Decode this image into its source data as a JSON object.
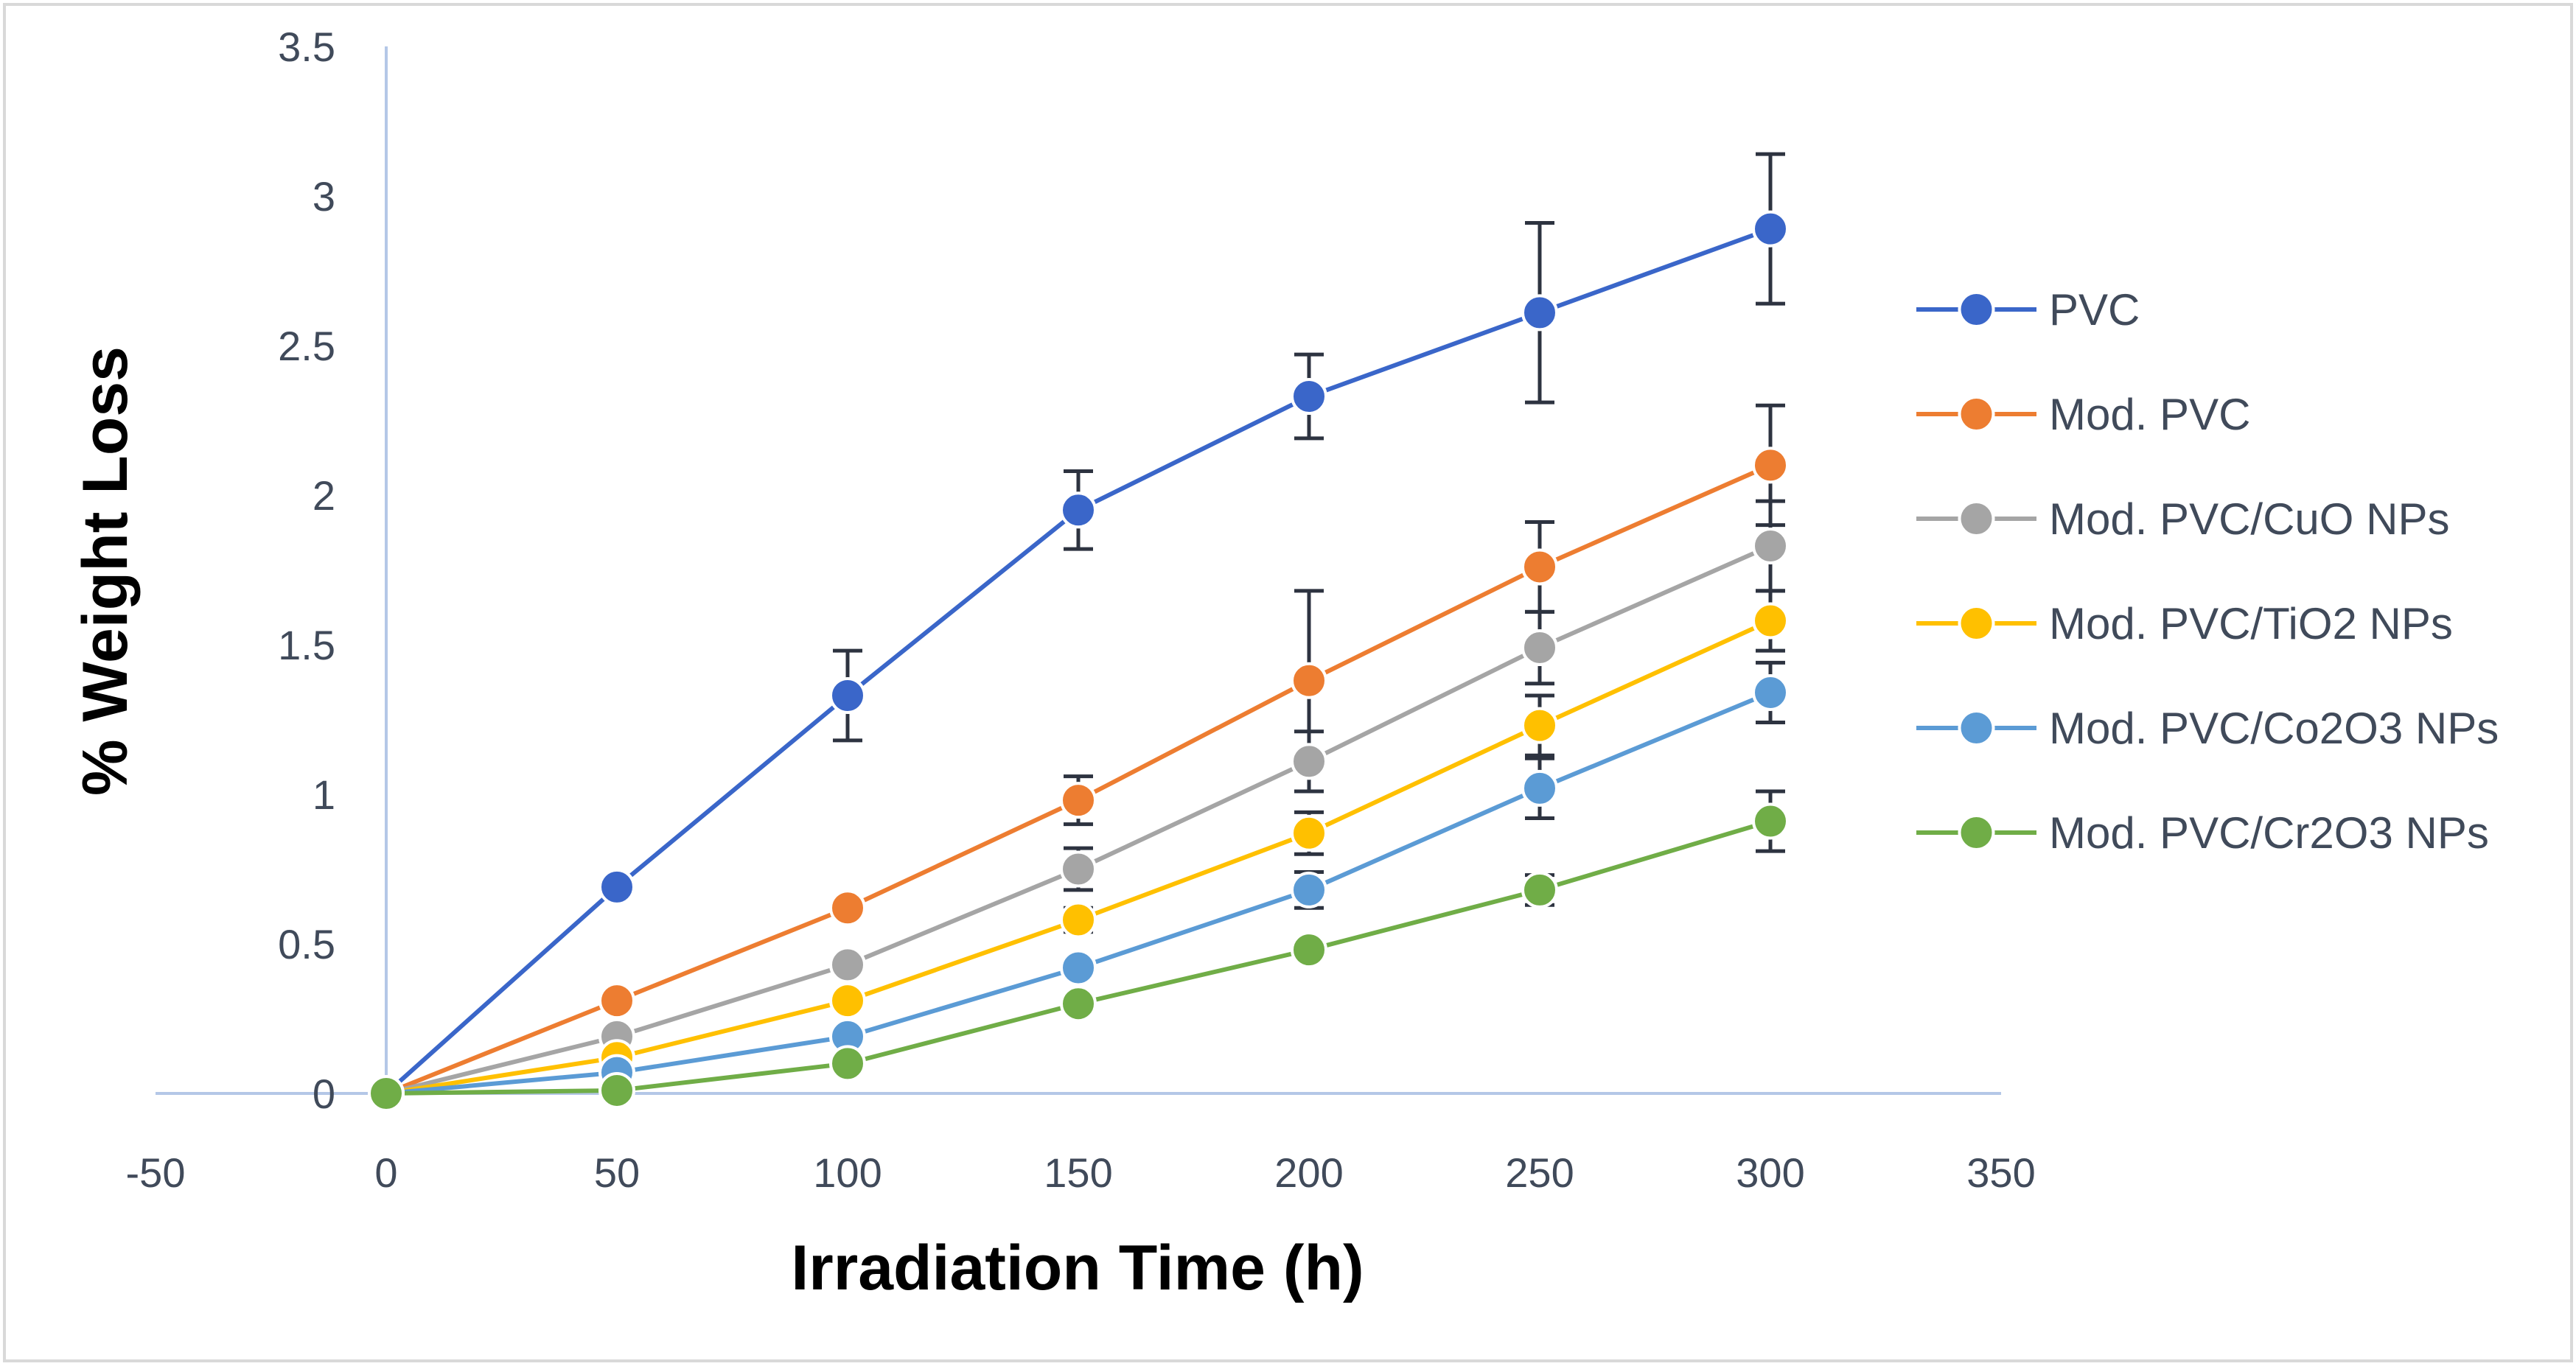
{
  "chart_data": {
    "type": "line",
    "title": "",
    "xlabel": "Irradiation Time (h)",
    "ylabel": "% Weight Loss",
    "xlim": [
      -50,
      350
    ],
    "ylim": [
      0,
      3.5
    ],
    "xticks": [
      -50,
      0,
      50,
      100,
      150,
      200,
      250,
      300,
      350
    ],
    "yticks": [
      0,
      0.5,
      1,
      1.5,
      2,
      2.5,
      3,
      3.5
    ],
    "x": [
      0,
      50,
      100,
      150,
      200,
      250,
      300
    ],
    "grid": false,
    "legend_position": "right",
    "series": [
      {
        "name": "PVC",
        "color": "#3a66c9",
        "values": [
          0,
          0.69,
          1.33,
          1.95,
          2.33,
          2.61,
          2.89
        ],
        "errors": [
          0,
          0.02,
          0.15,
          0.13,
          0.14,
          0.3,
          0.25
        ]
      },
      {
        "name": "Mod. PVC",
        "color": "#ed7d31",
        "values": [
          0,
          0.31,
          0.62,
          0.98,
          1.38,
          1.76,
          2.1
        ],
        "errors": [
          0,
          0.02,
          0.02,
          0.08,
          0.3,
          0.15,
          0.2
        ]
      },
      {
        "name": "Mod. PVC/CuO NPs",
        "color": "#a5a5a5",
        "values": [
          0,
          0.19,
          0.43,
          0.75,
          1.11,
          1.49,
          1.83
        ],
        "errors": [
          0,
          0.02,
          0.02,
          0.07,
          0.1,
          0.12,
          0.15
        ]
      },
      {
        "name": "Mod. PVC/TiO2 NPs",
        "color": "#ffc000",
        "values": [
          0,
          0.12,
          0.31,
          0.58,
          0.87,
          1.23,
          1.58
        ],
        "errors": [
          0,
          0.02,
          0.02,
          0.04,
          0.07,
          0.1,
          0.1
        ]
      },
      {
        "name": "Mod. PVC/Co2O3 NPs",
        "color": "#5b9bd5",
        "values": [
          0,
          0.07,
          0.19,
          0.42,
          0.68,
          1.02,
          1.34
        ],
        "errors": [
          0,
          0.02,
          0.02,
          0.03,
          0.06,
          0.1,
          0.1
        ]
      },
      {
        "name": "Mod. PVC/Cr2O3 NPs",
        "color": "#70ad47",
        "values": [
          0,
          0.01,
          0.1,
          0.3,
          0.48,
          0.68,
          0.91
        ],
        "errors": [
          0,
          0.01,
          0.02,
          0.03,
          0.03,
          0.05,
          0.1
        ]
      }
    ],
    "errorbar_color": "#2d3340"
  }
}
